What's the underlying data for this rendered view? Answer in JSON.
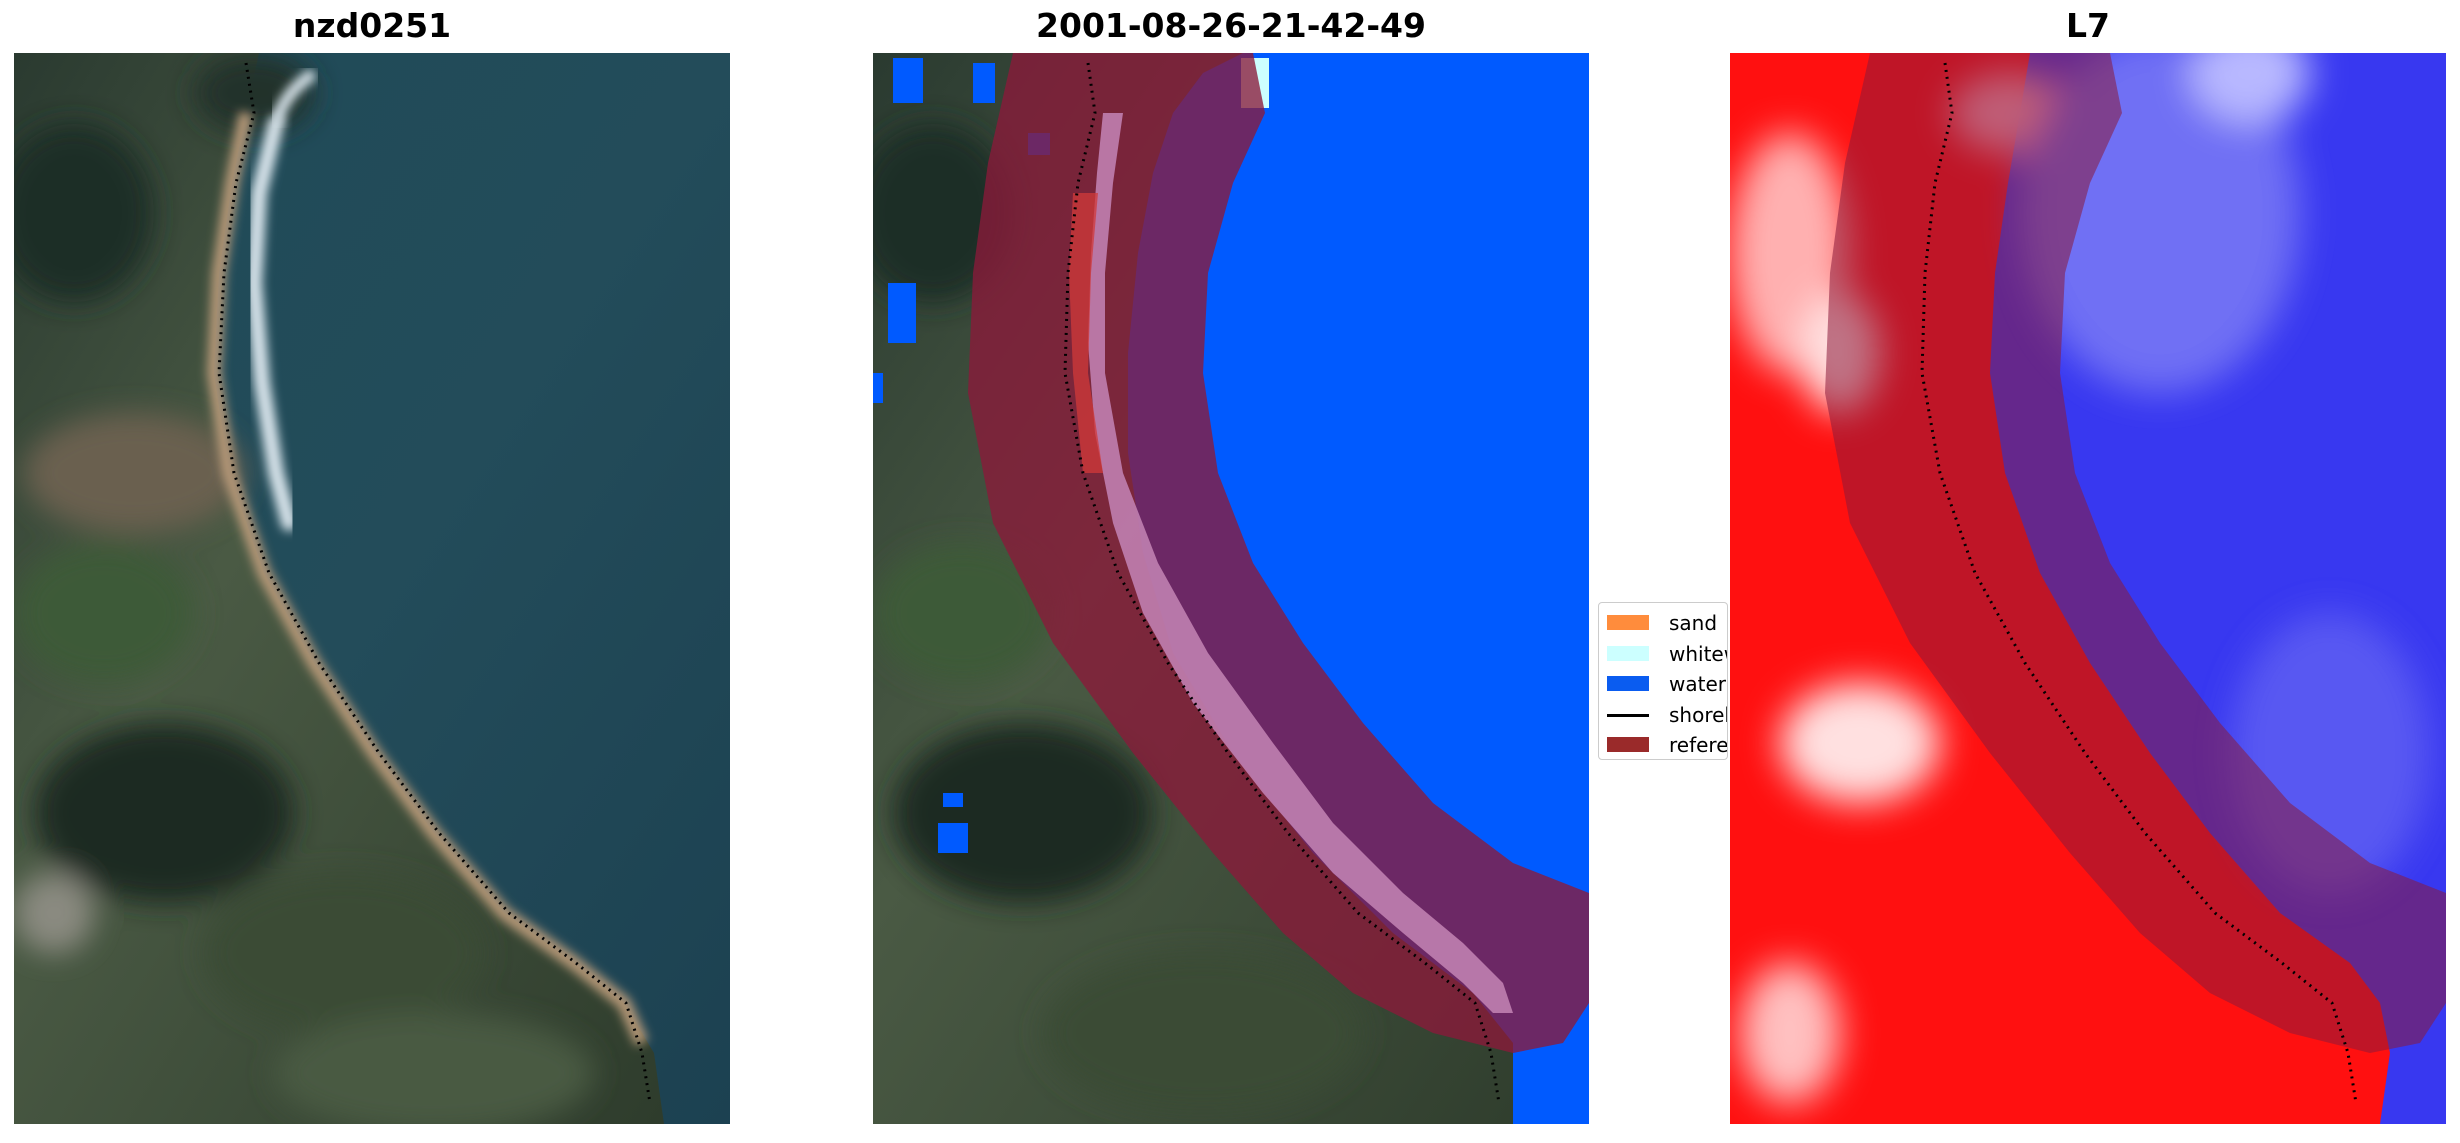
{
  "panels": [
    {
      "id": "rgb",
      "title": "nzd0251"
    },
    {
      "id": "classified",
      "title": "2001-08-26-21-42-49"
    },
    {
      "id": "index",
      "title": "L7"
    }
  ],
  "legend": {
    "items": [
      {
        "label": "sand",
        "color": "#ff8c3c",
        "kind": "patch"
      },
      {
        "label": "whitewater",
        "color": "#ccffff",
        "kind": "patch"
      },
      {
        "label": "water",
        "color": "#0a5cf0",
        "kind": "patch"
      },
      {
        "label": "shoreline",
        "color": "#000000",
        "kind": "line"
      },
      {
        "label": "reference shoreline buffer",
        "color": "#9a2a2a",
        "kind": "patch"
      }
    ]
  },
  "colors": {
    "water_class": "#005aff",
    "buffer": "#8b1a3a",
    "index_land": "#ff1010",
    "index_water": "#3838f0"
  }
}
